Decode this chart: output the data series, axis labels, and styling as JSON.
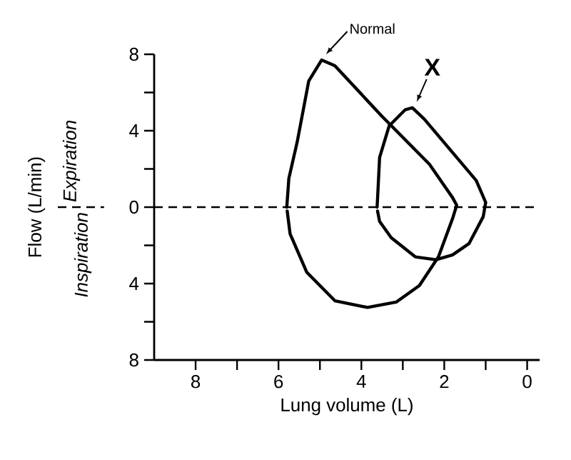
{
  "chart_data": {
    "type": "line",
    "xlabel": "Lung volume (L)",
    "ylabel": "Flow (L/min)",
    "xlim": [
      9,
      -0.3
    ],
    "ylim": [
      -8,
      8
    ],
    "xticks": [
      8,
      {
        "value": 7,
        "label": null
      },
      6,
      {
        "value": 5,
        "label": null
      },
      4,
      {
        "value": 3,
        "label": null
      },
      2,
      {
        "value": 1,
        "label": null
      },
      0
    ],
    "yticks": [
      {
        "value": -8,
        "label": "8"
      },
      {
        "value": -6,
        "label": null
      },
      {
        "value": -4,
        "label": "4"
      },
      {
        "value": -2,
        "label": null
      },
      0,
      {
        "value": 2,
        "label": null
      },
      4,
      {
        "value": 6,
        "label": null
      },
      8
    ],
    "grid": false,
    "legend": false,
    "marker": "none",
    "line_style": "solid",
    "ref_lines": [
      {
        "axis": "y",
        "value": 0,
        "line_style": "dashed",
        "color": "#000000"
      }
    ],
    "annotations": [
      "Expiration",
      "Inspiration"
    ],
    "series": [
      {
        "name": "Normal",
        "color": "#000000",
        "x": [
          5.8,
          5.75,
          5.55,
          5.27,
          4.96,
          4.64,
          3.5,
          2.36,
          1.8,
          1.7,
          1.8,
          2.14,
          2.6,
          3.16,
          3.85,
          4.64,
          5.32,
          5.72,
          5.79
        ],
        "values": [
          0,
          1.5,
          3.4,
          6.6,
          7.7,
          7.4,
          4.75,
          2.25,
          0.5,
          0.1,
          -0.6,
          -2.6,
          -4.1,
          -4.97,
          -5.25,
          -4.9,
          -3.4,
          -1.4,
          -0.2
        ]
      },
      {
        "name": "X",
        "color": "#000000",
        "x": [
          3.62,
          3.56,
          3.33,
          2.94,
          2.77,
          2.48,
          1.23,
          1.0,
          1.06,
          1.4,
          1.8,
          2.2,
          2.7,
          3.28,
          3.56,
          3.61
        ],
        "values": [
          0,
          2.6,
          4.25,
          5.1,
          5.2,
          4.6,
          1.4,
          0.25,
          -0.5,
          -1.9,
          -2.5,
          -2.75,
          -2.6,
          -1.6,
          -0.75,
          -0.2
        ]
      }
    ]
  }
}
